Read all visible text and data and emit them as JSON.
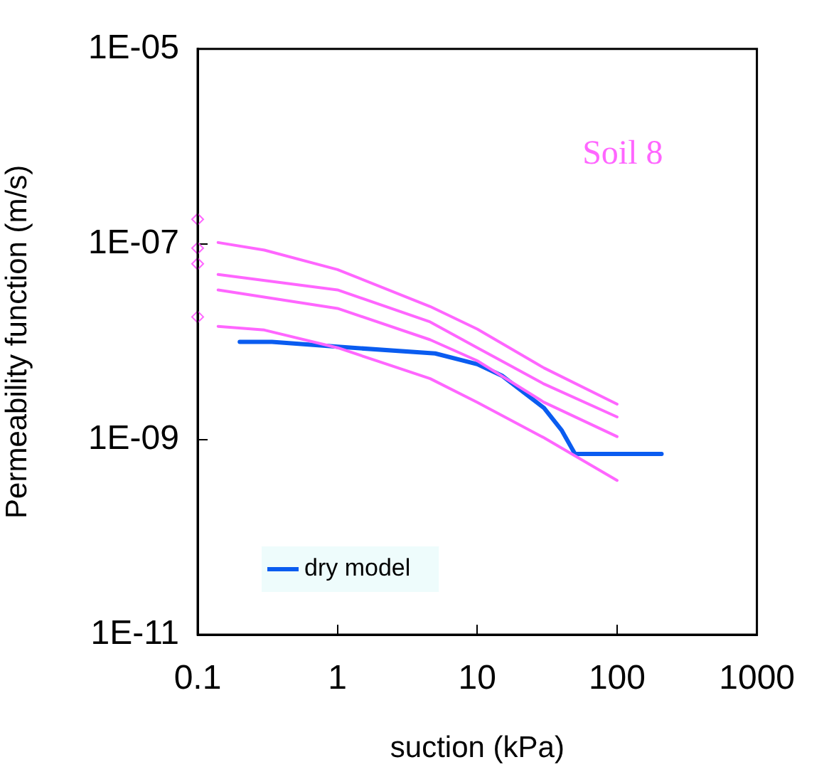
{
  "chart_data": {
    "type": "line",
    "xlabel": "suction (kPa)",
    "ylabel": "Permeability function (m/s)",
    "log": "xy",
    "grid": false,
    "legend": "bottom left",
    "xlim": [
      0.1,
      1000
    ],
    "xticks": [
      0.1,
      1,
      10,
      100,
      1000
    ],
    "ylim": [
      1e-11,
      1e-05
    ],
    "yticks": [
      {
        "value": 1e-11,
        "label": "1E-11"
      },
      {
        "value": 1e-09,
        "label": "1E-09"
      },
      {
        "value": 1e-07,
        "label": "1E-07"
      },
      {
        "value": 1e-05,
        "label": "1E-05"
      }
    ],
    "annotations": [
      "Soil 8"
    ],
    "series": [
      {
        "marker": "none",
        "color": "#ff66ff",
        "x": [
          0.14,
          0.3,
          1,
          4.6,
          10,
          30,
          100
        ],
        "values": [
          1.04e-07,
          8.7e-08,
          5.5e-08,
          2.3e-08,
          1.35e-08,
          5.4e-09,
          2.3e-09
        ]
      },
      {
        "marker": "none",
        "color": "#ff66ff",
        "x": [
          0.14,
          1,
          4.6,
          10,
          30,
          100
        ],
        "values": [
          4.9e-08,
          3.4e-08,
          1.6e-08,
          8.7e-09,
          3.7e-09,
          1.7e-09
        ]
      },
      {
        "marker": "none",
        "color": "#ff66ff",
        "x": [
          0.14,
          1,
          4.6,
          10,
          30,
          100
        ],
        "values": [
          3.4e-08,
          2.2e-08,
          1.05e-08,
          6.4e-09,
          2.4e-09,
          1.07e-09
        ]
      },
      {
        "marker": "none",
        "color": "#ff66ff",
        "x": [
          0.14,
          0.3,
          1,
          4.6,
          10,
          30,
          100
        ],
        "values": [
          1.44e-08,
          1.32e-08,
          8.7e-09,
          4.2e-09,
          2.4e-09,
          1.04e-09,
          3.8e-10
        ]
      },
      {
        "type": "scatter",
        "marker": "diamond",
        "color": "#ff66ff",
        "x": [
          0.1,
          0.1,
          0.1,
          0.1
        ],
        "values": [
          1.8e-07,
          9.1e-08,
          6.3e-08,
          1.8e-08
        ]
      },
      {
        "marker": "none",
        "name": "dry model",
        "color": "#0a5cf0",
        "x": [
          0.2,
          0.34,
          1,
          5,
          10,
          15,
          30,
          40,
          50,
          208
        ],
        "values": [
          1e-08,
          1e-08,
          8.9e-09,
          7.6e-09,
          5.9e-09,
          4.5e-09,
          2.1e-09,
          1.25e-09,
          7.1e-10,
          7.1e-10
        ]
      }
    ]
  }
}
